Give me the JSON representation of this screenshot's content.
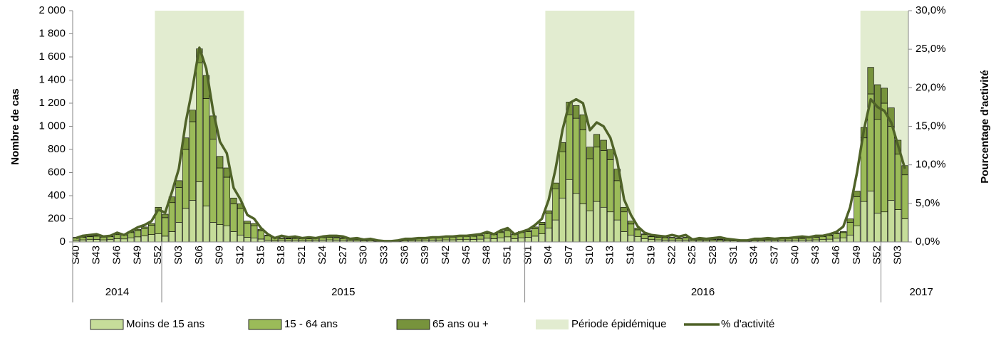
{
  "chart_data": {
    "type": "bar",
    "y_label": "Nombre de cas",
    "y2_label": "Pourcentage d'activité",
    "categories": [
      "S40",
      null,
      null,
      "S43",
      null,
      null,
      "S46",
      null,
      null,
      "S49",
      null,
      null,
      "S52",
      null,
      null,
      "S03",
      null,
      null,
      "S06",
      null,
      null,
      "S09",
      null,
      null,
      "S12",
      null,
      null,
      "S15",
      null,
      null,
      "S18",
      null,
      null,
      "S21",
      null,
      null,
      "S24",
      null,
      null,
      "S27",
      null,
      null,
      "S30",
      null,
      null,
      "S33",
      null,
      null,
      "S36",
      null,
      null,
      "S39",
      null,
      null,
      "S42",
      null,
      null,
      "S45",
      null,
      null,
      "S48",
      null,
      null,
      "S51",
      null,
      null,
      "S01",
      null,
      null,
      "S04",
      null,
      null,
      "S07",
      null,
      null,
      "S10",
      null,
      null,
      "S13",
      null,
      null,
      "S16",
      null,
      null,
      "S19",
      null,
      null,
      "S22",
      null,
      null,
      "S25",
      null,
      null,
      "S28",
      null,
      null,
      "S31",
      null,
      null,
      "S34",
      null,
      null,
      "S37",
      null,
      null,
      "S40",
      null,
      null,
      "S43",
      null,
      null,
      "S46",
      null,
      null,
      "S49",
      null,
      null,
      "S52",
      null,
      null,
      "S03",
      null
    ],
    "year_groups": [
      {
        "label": "2014",
        "weeks": 13
      },
      {
        "label": "2015",
        "weeks": 53
      },
      {
        "label": "2016",
        "weeks": 52
      },
      {
        "label": "2017",
        "weeks": 4
      }
    ],
    "series": [
      {
        "name": "Moins de 15 ans",
        "color": "#c6dd9a",
        "values": [
          15,
          18,
          20,
          22,
          18,
          20,
          28,
          26,
          36,
          44,
          52,
          64,
          70,
          50,
          90,
          170,
          290,
          360,
          520,
          310,
          170,
          150,
          140,
          90,
          60,
          40,
          35,
          25,
          15,
          10,
          14,
          12,
          14,
          12,
          12,
          14,
          16,
          18,
          16,
          14,
          12,
          10,
          10,
          8,
          6,
          4,
          4,
          6,
          8,
          10,
          12,
          14,
          16,
          16,
          18,
          18,
          20,
          20,
          22,
          24,
          32,
          28,
          36,
          44,
          28,
          36,
          40,
          50,
          70,
          120,
          190,
          380,
          540,
          420,
          330,
          270,
          350,
          300,
          260,
          190,
          90,
          60,
          45,
          28,
          20,
          18,
          16,
          16,
          14,
          16,
          12,
          10,
          10,
          10,
          10,
          8,
          8,
          6,
          6,
          8,
          8,
          10,
          10,
          12,
          12,
          14,
          14,
          16,
          18,
          20,
          24,
          32,
          36,
          60,
          140,
          350,
          440,
          250,
          260,
          360,
          280,
          200
        ]
      },
      {
        "name": "15 - 64 ans",
        "color": "#9bbb59",
        "values": [
          20,
          23,
          25,
          28,
          23,
          25,
          35,
          33,
          45,
          55,
          65,
          80,
          200,
          160,
          250,
          300,
          510,
          680,
          1030,
          930,
          720,
          490,
          420,
          240,
          230,
          120,
          105,
          70,
          37,
          25,
          17,
          15,
          17,
          15,
          15,
          17,
          20,
          22,
          20,
          17,
          15,
          12,
          12,
          10,
          7,
          5,
          5,
          7,
          10,
          12,
          15,
          17,
          20,
          20,
          22,
          22,
          25,
          25,
          27,
          30,
          40,
          35,
          45,
          55,
          35,
          45,
          50,
          65,
          80,
          130,
          270,
          400,
          560,
          650,
          640,
          450,
          470,
          490,
          450,
          340,
          170,
          95,
          60,
          35,
          25,
          22,
          20,
          20,
          17,
          20,
          15,
          12,
          12,
          12,
          12,
          10,
          10,
          7,
          7,
          10,
          10,
          12,
          12,
          15,
          15,
          17,
          17,
          20,
          22,
          25,
          30,
          40,
          45,
          110,
          250,
          550,
          840,
          810,
          940,
          640,
          480,
          380
        ]
      },
      {
        "name": "65 ans ou +",
        "color": "#77933c",
        "values": [
          5,
          4,
          5,
          5,
          4,
          5,
          7,
          6,
          9,
          11,
          13,
          16,
          30,
          30,
          50,
          60,
          100,
          100,
          120,
          200,
          200,
          100,
          80,
          50,
          40,
          20,
          20,
          15,
          8,
          5,
          4,
          3,
          4,
          3,
          3,
          4,
          4,
          5,
          4,
          4,
          3,
          3,
          3,
          2,
          2,
          1,
          1,
          2,
          2,
          3,
          3,
          4,
          4,
          4,
          5,
          5,
          5,
          5,
          6,
          6,
          8,
          7,
          9,
          11,
          7,
          9,
          10,
          15,
          20,
          20,
          50,
          80,
          110,
          110,
          130,
          100,
          110,
          90,
          90,
          100,
          40,
          25,
          15,
          7,
          5,
          5,
          4,
          4,
          4,
          4,
          3,
          3,
          3,
          3,
          3,
          2,
          2,
          2,
          2,
          2,
          2,
          3,
          3,
          3,
          3,
          4,
          4,
          4,
          5,
          5,
          6,
          8,
          9,
          30,
          50,
          90,
          230,
          300,
          130,
          160,
          120,
          80
        ]
      },
      {
        "name": "% d'activité",
        "type": "line",
        "axis": "y2",
        "color": "#4f6228",
        "values": [
          0.5,
          0.8,
          0.9,
          1.0,
          0.7,
          0.8,
          1.2,
          0.9,
          1.4,
          1.9,
          2.2,
          2.7,
          4.2,
          3.8,
          6.5,
          9.5,
          15.5,
          20,
          25.2,
          22.5,
          17,
          13,
          11.5,
          7,
          5.5,
          3.5,
          3,
          1.8,
          1,
          0.5,
          0.8,
          0.6,
          0.7,
          0.5,
          0.6,
          0.5,
          0.7,
          0.8,
          0.8,
          0.7,
          0.4,
          0.5,
          0.3,
          0.4,
          0.2,
          0.1,
          0.1,
          0.2,
          0.4,
          0.4,
          0.5,
          0.5,
          0.6,
          0.6,
          0.7,
          0.7,
          0.8,
          0.8,
          0.9,
          1,
          1.3,
          1,
          1.5,
          1.8,
          1,
          1.3,
          1.6,
          2.2,
          3,
          5.5,
          9.5,
          14.5,
          18,
          18.5,
          18,
          14.5,
          15.5,
          15,
          13.5,
          10.5,
          5.5,
          3.5,
          2,
          1.2,
          0.9,
          0.8,
          0.7,
          0.9,
          0.7,
          0.9,
          0.3,
          0.5,
          0.4,
          0.5,
          0.6,
          0.4,
          0.3,
          0.2,
          0.2,
          0.4,
          0.4,
          0.5,
          0.4,
          0.5,
          0.5,
          0.6,
          0.7,
          0.6,
          0.8,
          0.8,
          1,
          1.3,
          2,
          4.5,
          9,
          14.5,
          18.5,
          17.5,
          17,
          15.5,
          12.5,
          9.5
        ]
      }
    ],
    "epidemic": {
      "name": "Période épidémique",
      "color": "#e2ecd0",
      "ranges": [
        [
          12,
          24
        ],
        [
          69,
          81
        ],
        [
          115,
          121
        ]
      ]
    },
    "ylim": [
      0,
      2000
    ],
    "yticks": [
      0,
      200,
      400,
      600,
      800,
      {
        "value": 1000,
        "label": "1 000"
      },
      {
        "value": 1200,
        "label": "1 200"
      },
      {
        "value": 1400,
        "label": "1 400"
      },
      {
        "value": 1600,
        "label": "1 600"
      },
      {
        "value": 1800,
        "label": "1 800"
      },
      {
        "value": 2000,
        "label": "2 000"
      }
    ],
    "y2lim": [
      0,
      30
    ],
    "y2ticks": [
      {
        "value": 0,
        "label": "0,0%"
      },
      {
        "value": 5,
        "label": "5,0%"
      },
      {
        "value": 10,
        "label": "10,0%"
      },
      {
        "value": 15,
        "label": "15,0%"
      },
      {
        "value": 20,
        "label": "20,0%"
      },
      {
        "value": 25,
        "label": "25,0%"
      },
      {
        "value": 30,
        "label": "30,0%"
      }
    ],
    "stacked": true
  }
}
